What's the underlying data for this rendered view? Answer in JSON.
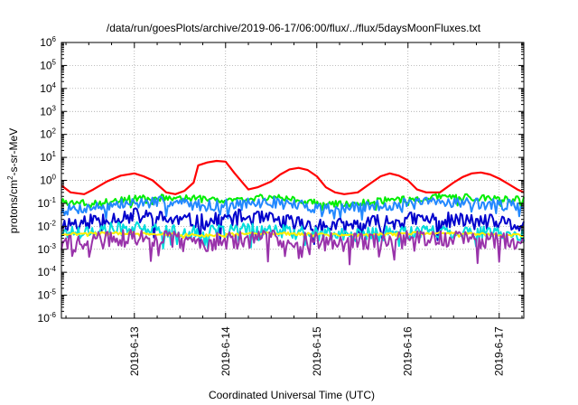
{
  "chart_data": {
    "type": "line",
    "title": "/data/run/goesPlots/archive/2019-06-17/06:00/flux/../flux/5daysMoonFluxes.txt",
    "xlabel": "Coordinated Universal Time (UTC)",
    "ylabel_parts": {
      "pre": "protons/cm",
      "sup": "2",
      "post": "-s-sr-MeV"
    },
    "yscale": "log",
    "ylim": [
      1e-06,
      1000000.0
    ],
    "xlim": [
      12.2,
      17.27
    ],
    "grid": true,
    "y_ticks": [
      {
        "exp": "-6",
        "v": 1e-06
      },
      {
        "exp": "-5",
        "v": 1e-05
      },
      {
        "exp": "-4",
        "v": 0.0001
      },
      {
        "exp": "-3",
        "v": 0.001
      },
      {
        "exp": "-2",
        "v": 0.01
      },
      {
        "exp": "-1",
        "v": 0.1
      },
      {
        "exp": "0",
        "v": 1
      },
      {
        "exp": "1",
        "v": 10
      },
      {
        "exp": "2",
        "v": 100
      },
      {
        "exp": "3",
        "v": 1000
      },
      {
        "exp": "4",
        "v": 10000
      },
      {
        "exp": "5",
        "v": 100000
      },
      {
        "exp": "6",
        "v": 1000000
      }
    ],
    "y_tick_base": "10",
    "x_ticks": [
      {
        "label": "2019-6-13",
        "day": 13
      },
      {
        "label": "2019-6-14",
        "day": 14
      },
      {
        "label": "2019-6-15",
        "day": 15
      },
      {
        "label": "2019-6-16",
        "day": 16
      },
      {
        "label": "2019-6-17",
        "day": 17
      }
    ],
    "series": [
      {
        "color": "#ff0000",
        "lw": 2.2,
        "x": [
          12.2,
          12.3,
          12.45,
          12.55,
          12.7,
          12.85,
          13.0,
          13.1,
          13.2,
          13.35,
          13.45,
          13.55,
          13.65,
          13.7,
          13.8,
          13.9,
          14.0,
          14.1,
          14.25,
          14.35,
          14.5,
          14.6,
          14.7,
          14.8,
          14.9,
          15.0,
          15.1,
          15.2,
          15.3,
          15.45,
          15.6,
          15.7,
          15.8,
          15.9,
          16.0,
          16.1,
          16.2,
          16.35,
          16.5,
          16.6,
          16.7,
          16.8,
          16.9,
          17.0,
          17.1,
          17.2,
          17.27
        ],
        "values": [
          0.6,
          0.3,
          0.25,
          0.4,
          0.9,
          1.6,
          2.0,
          1.5,
          1.0,
          0.3,
          0.25,
          0.35,
          0.8,
          4.5,
          6.0,
          7.0,
          6.5,
          2.0,
          0.4,
          0.5,
          0.9,
          1.8,
          3.0,
          3.5,
          2.8,
          1.5,
          0.5,
          0.3,
          0.25,
          0.3,
          0.8,
          1.5,
          2.0,
          1.6,
          1.0,
          0.4,
          0.3,
          0.3,
          0.8,
          1.4,
          2.0,
          2.2,
          1.8,
          1.2,
          0.7,
          0.4,
          0.3
        ]
      },
      {
        "color": "#00ee00",
        "lw": 2.0,
        "base": [
          0.12,
          0.1,
          0.16,
          0.18,
          0.15,
          0.14,
          0.2,
          0.11,
          0.09,
          0.13,
          0.16,
          0.2,
          0.17,
          0.15
        ],
        "jitter": 0.15,
        "seed": 3
      },
      {
        "color": "#2288ff",
        "lw": 2.0,
        "base": [
          0.05,
          0.07,
          0.1,
          0.12,
          0.08,
          0.09,
          0.11,
          0.07,
          0.06,
          0.08,
          0.1,
          0.12,
          0.09,
          0.08
        ],
        "jitter": 0.25,
        "seed": 7
      },
      {
        "color": "#0000cc",
        "lw": 2.0,
        "base": [
          0.012,
          0.02,
          0.03,
          0.02,
          0.015,
          0.025,
          0.018,
          0.012,
          0.01,
          0.015,
          0.02,
          0.018,
          0.015,
          0.01
        ],
        "jitter": 0.35,
        "seed": 11
      },
      {
        "color": "#00dddd",
        "lw": 2.0,
        "base": [
          0.005,
          0.007,
          0.008,
          0.006,
          0.005,
          0.007,
          0.006,
          0.005,
          0.004,
          0.005,
          0.006,
          0.006,
          0.005,
          0.004
        ],
        "jitter": 0.3,
        "seed": 17
      },
      {
        "color": "#ffee00",
        "lw": 2.0,
        "base": [
          0.0045,
          0.005,
          0.005,
          0.0045,
          0.004,
          0.0045,
          0.005,
          0.0045,
          0.004,
          0.0045,
          0.005,
          0.005,
          0.0045,
          0.004
        ],
        "jitter": 0.06,
        "seed": 21
      },
      {
        "color": "#9933aa",
        "lw": 2.0,
        "base": [
          0.0015,
          0.0025,
          0.003,
          0.0028,
          0.002,
          0.0025,
          0.003,
          0.0025,
          0.002,
          0.0022,
          0.003,
          0.0028,
          0.0025,
          0.002
        ],
        "jitter": 0.4,
        "seed": 29
      }
    ]
  }
}
